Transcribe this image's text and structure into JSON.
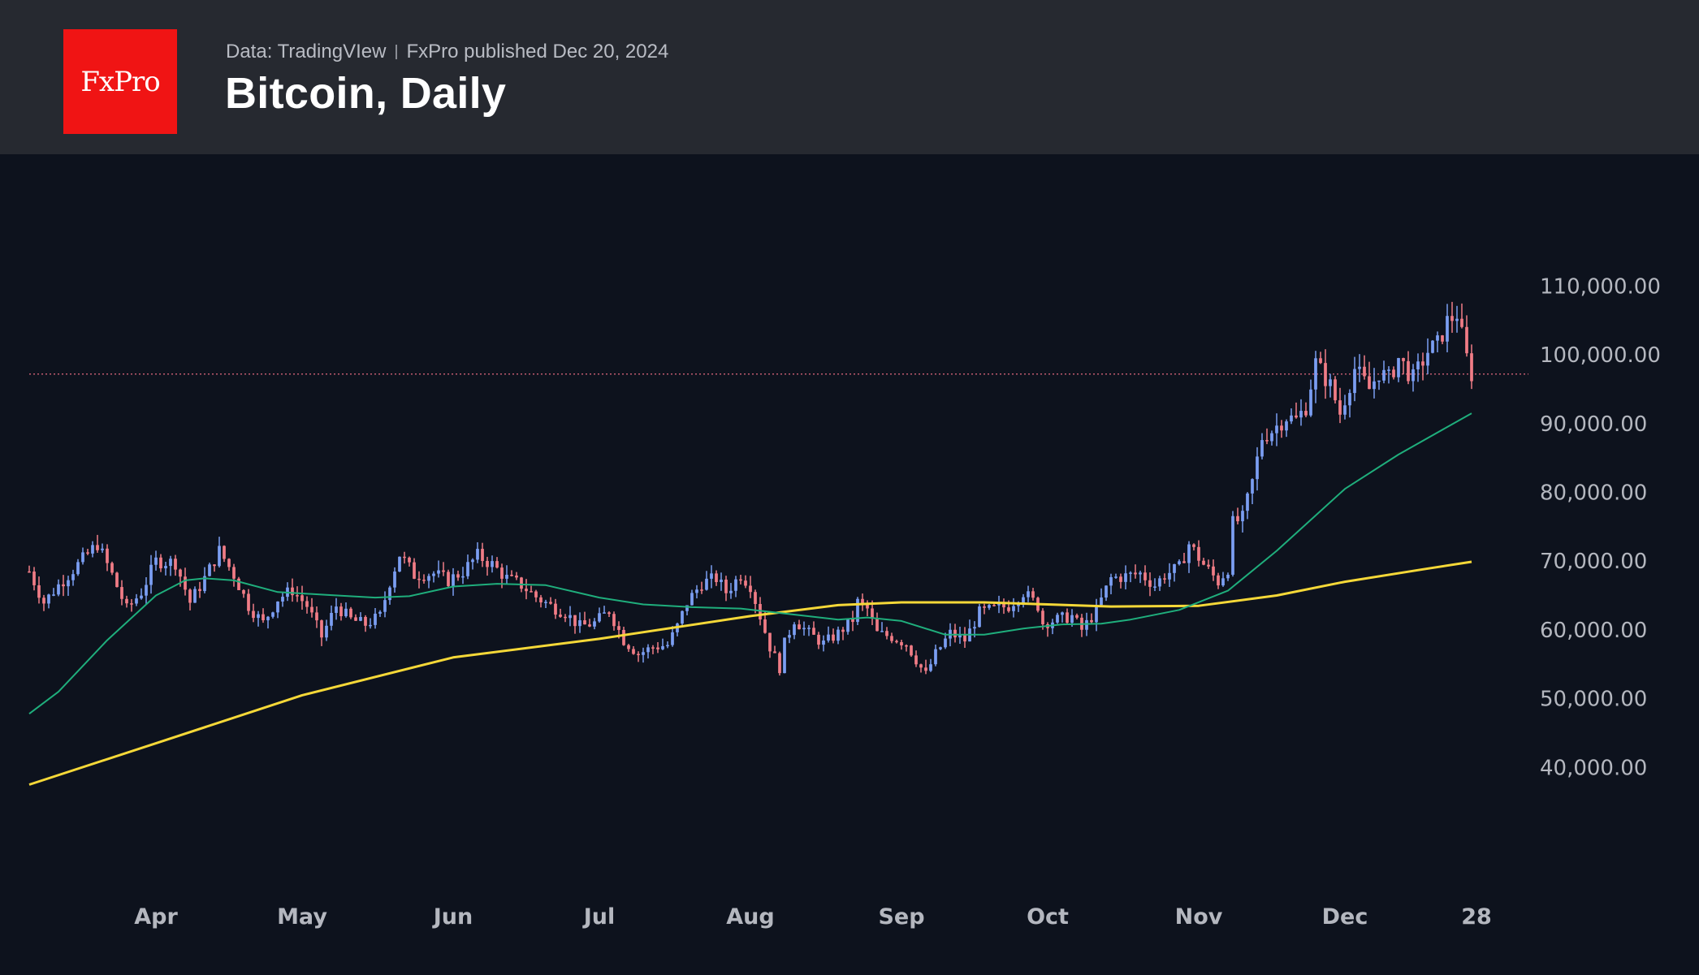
{
  "header": {
    "logo_text": "FxPro",
    "source": "Data: TradingVIew",
    "published": "FxPro published Dec 20, 2024",
    "title": "Bitcoin, Daily"
  },
  "colors": {
    "background": "#0d121d",
    "header": "#262930",
    "logo": "#f01414",
    "up": "#7b9ef2",
    "down": "#f07c86",
    "ma_slow": "#f5d838",
    "ma_fast": "#1fae7c",
    "price_line": "#c05a6e",
    "axis_text": "#b4b7bf"
  },
  "chart_data": {
    "type": "candlestick",
    "title": "Bitcoin, Daily",
    "ylim": [
      30000,
      115000
    ],
    "y_ticks": [
      40000,
      50000,
      60000,
      70000,
      80000,
      90000,
      100000,
      110000
    ],
    "y_tick_labels": [
      "40,000.00",
      "50,000.00",
      "60,000.00",
      "70,000.00",
      "80,000.00",
      "90,000.00",
      "100,000.00",
      "110,000.00"
    ],
    "x_ticks": [
      {
        "label": "Apr",
        "day": 20
      },
      {
        "label": "May",
        "day": 50
      },
      {
        "label": "Jun",
        "day": 81
      },
      {
        "label": "Jul",
        "day": 111
      },
      {
        "label": "Aug",
        "day": 142
      },
      {
        "label": "Sep",
        "day": 173
      },
      {
        "label": "Oct",
        "day": 203
      },
      {
        "label": "Nov",
        "day": 234
      },
      {
        "label": "Dec",
        "day": 264
      },
      {
        "label": "28",
        "day": 291
      }
    ],
    "x_domain_days": [
      -6,
      299
    ],
    "last_price": 97200,
    "close_anchors": [
      [
        -6,
        68500
      ],
      [
        -3,
        64000
      ],
      [
        0,
        66500
      ],
      [
        4,
        69500
      ],
      [
        8,
        72500
      ],
      [
        11,
        68000
      ],
      [
        14,
        63000
      ],
      [
        17,
        65500
      ],
      [
        20,
        70000
      ],
      [
        24,
        69800
      ],
      [
        27,
        64000
      ],
      [
        30,
        67500
      ],
      [
        33,
        71500
      ],
      [
        36,
        68000
      ],
      [
        39,
        63500
      ],
      [
        42,
        61000
      ],
      [
        45,
        64500
      ],
      [
        48,
        65800
      ],
      [
        51,
        63500
      ],
      [
        54,
        59000
      ],
      [
        57,
        63500
      ],
      [
        60,
        61500
      ],
      [
        63,
        60800
      ],
      [
        66,
        62000
      ],
      [
        68,
        67000
      ],
      [
        70,
        71000
      ],
      [
        73,
        68000
      ],
      [
        77,
        68200
      ],
      [
        80,
        67200
      ],
      [
        83,
        68500
      ],
      [
        86,
        70800
      ],
      [
        89,
        69500
      ],
      [
        92,
        67500
      ],
      [
        95,
        66500
      ],
      [
        98,
        64800
      ],
      [
        101,
        63500
      ],
      [
        104,
        62500
      ],
      [
        107,
        60500
      ],
      [
        110,
        61000
      ],
      [
        113,
        62800
      ],
      [
        116,
        58500
      ],
      [
        119,
        56500
      ],
      [
        122,
        57500
      ],
      [
        125,
        57800
      ],
      [
        127,
        60500
      ],
      [
        129,
        64000
      ],
      [
        132,
        66800
      ],
      [
        135,
        67500
      ],
      [
        137,
        65500
      ],
      [
        140,
        68000
      ],
      [
        142,
        66500
      ],
      [
        144,
        62000
      ],
      [
        146,
        57500
      ],
      [
        148,
        54500
      ],
      [
        149,
        58000
      ],
      [
        151,
        61500
      ],
      [
        154,
        59500
      ],
      [
        157,
        58000
      ],
      [
        160,
        59500
      ],
      [
        163,
        61500
      ],
      [
        164,
        64000
      ],
      [
        166,
        63000
      ],
      [
        168,
        59500
      ],
      [
        171,
        59000
      ],
      [
        174,
        58000
      ],
      [
        177,
        54500
      ],
      [
        178,
        53500
      ],
      [
        180,
        56500
      ],
      [
        183,
        59500
      ],
      [
        186,
        58500
      ],
      [
        189,
        62500
      ],
      [
        192,
        63000
      ],
      [
        195,
        63500
      ],
      [
        198,
        65500
      ],
      [
        201,
        63500
      ],
      [
        202,
        61000
      ],
      [
        205,
        61500
      ],
      [
        208,
        62000
      ],
      [
        210,
        60000
      ],
      [
        213,
        62800
      ],
      [
        216,
        67500
      ],
      [
        219,
        67800
      ],
      [
        222,
        68200
      ],
      [
        225,
        66500
      ],
      [
        227,
        68000
      ],
      [
        230,
        69000
      ],
      [
        232,
        72500
      ],
      [
        235,
        69500
      ],
      [
        238,
        67000
      ],
      [
        240,
        69000
      ],
      [
        241,
        75500
      ],
      [
        243,
        76200
      ],
      [
        245,
        81500
      ],
      [
        247,
        88000
      ],
      [
        249,
        89000
      ],
      [
        252,
        91000
      ],
      [
        254,
        90500
      ],
      [
        256,
        92500
      ],
      [
        258,
        98800
      ],
      [
        261,
        95500
      ],
      [
        263,
        91500
      ],
      [
        266,
        98000
      ],
      [
        269,
        95000
      ],
      [
        271,
        97500
      ],
      [
        273,
        96500
      ],
      [
        275,
        99500
      ],
      [
        278,
        96500
      ],
      [
        281,
        100500
      ],
      [
        283,
        101500
      ],
      [
        285,
        104800
      ],
      [
        287,
        106000
      ],
      [
        289,
        99500
      ],
      [
        290,
        97200
      ]
    ],
    "series": [
      {
        "name": "MA (slow)",
        "color": "#f5d838",
        "x": [
          -6,
          20,
          50,
          81,
          111,
          142,
          160,
          173,
          190,
          203,
          216,
          234,
          250,
          264,
          280,
          290
        ],
        "values": [
          37500,
          43500,
          50500,
          56000,
          58700,
          62000,
          63600,
          64000,
          64000,
          63700,
          63400,
          63500,
          65000,
          67000,
          68800,
          69900
        ]
      },
      {
        "name": "MA (fast)",
        "color": "#1fae7c",
        "x": [
          -6,
          0,
          10,
          20,
          26,
          30,
          36,
          45,
          55,
          65,
          72,
          81,
          90,
          100,
          111,
          120,
          130,
          140,
          150,
          160,
          166,
          173,
          182,
          190,
          198,
          206,
          214,
          220,
          230,
          240,
          250,
          264,
          275,
          285,
          290
        ],
        "values": [
          47800,
          51000,
          58500,
          65000,
          67200,
          67500,
          67200,
          65500,
          65100,
          64700,
          64900,
          66300,
          66700,
          66500,
          64700,
          63700,
          63300,
          63100,
          62300,
          61500,
          61800,
          61300,
          59300,
          59300,
          60200,
          60800,
          60900,
          61500,
          62900,
          65700,
          71500,
          80500,
          85500,
          89500,
          91500
        ]
      }
    ]
  }
}
